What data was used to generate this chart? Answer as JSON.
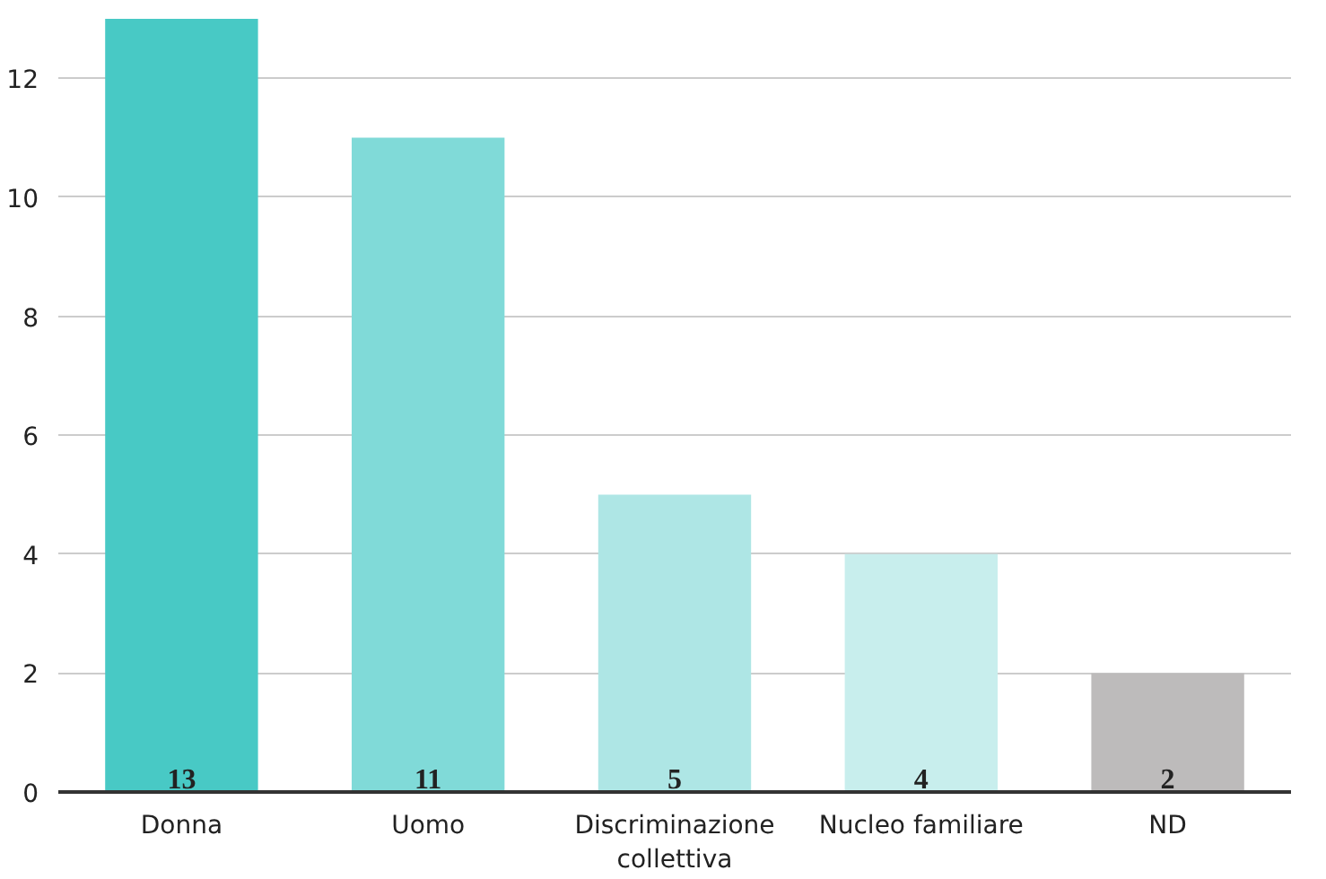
{
  "chart_data": {
    "type": "bar",
    "categories": [
      "Donna",
      "Uomo",
      "Discriminazione collettiva",
      "Nucleo familiare",
      "ND"
    ],
    "values": [
      13,
      11,
      5,
      4,
      2
    ],
    "colors": [
      "#48c9c5",
      "#80dad8",
      "#aee6e5",
      "#c8eeed",
      "#bdbbbb"
    ],
    "ylim": [
      0,
      13
    ],
    "yticks": [
      0,
      2,
      4,
      6,
      8,
      10,
      12
    ],
    "grid": "y",
    "data_labels": true
  }
}
